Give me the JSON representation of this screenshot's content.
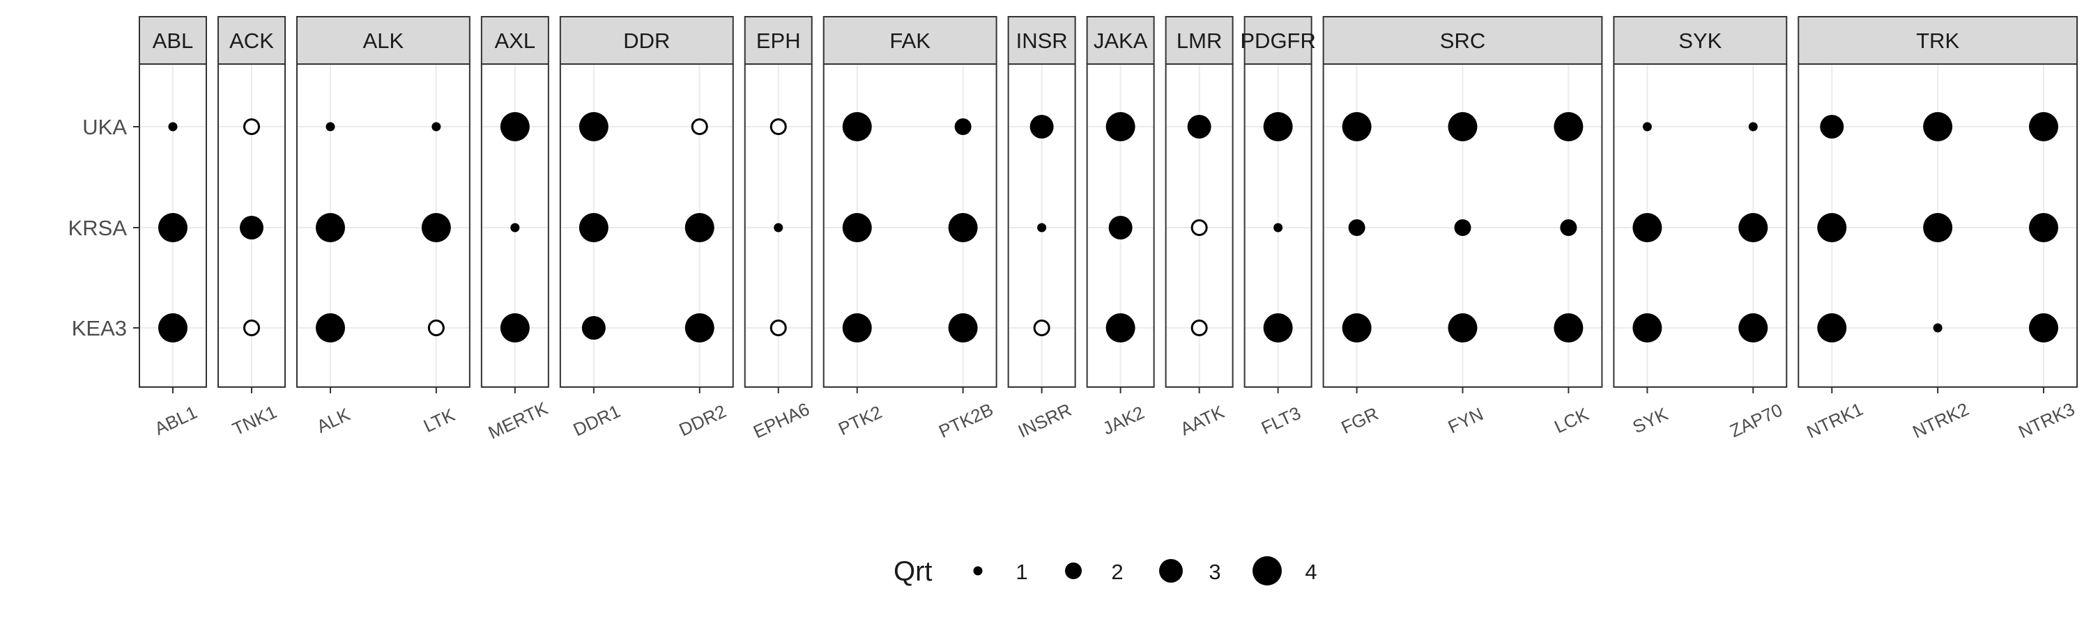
{
  "chart_data": {
    "type": "scatter",
    "title": "",
    "xlabel": "",
    "ylabel": "",
    "y_categories": [
      "UKA",
      "KRSA",
      "KEA3"
    ],
    "size_legend": {
      "title": "Qrt",
      "levels": [
        1,
        2,
        3,
        4
      ],
      "labels": [
        "1",
        "2",
        "3",
        "4"
      ]
    },
    "point_style": {
      "filled_color": "#000000",
      "open_fill": "#ffffff",
      "open_stroke": "#000000"
    },
    "panel_strip_color": "#d9d9d9",
    "grid": true,
    "legend_position": "bottom",
    "panels": [
      {
        "family": "ABL",
        "genes": [
          {
            "name": "ABL1",
            "points": [
              {
                "y": "UKA",
                "qrt": 1,
                "filled": true
              },
              {
                "y": "KRSA",
                "qrt": 4,
                "filled": true
              },
              {
                "y": "KEA3",
                "qrt": 4,
                "filled": true
              }
            ]
          }
        ]
      },
      {
        "family": "ACK",
        "genes": [
          {
            "name": "TNK1",
            "points": [
              {
                "y": "UKA",
                "qrt": 2,
                "filled": false
              },
              {
                "y": "KRSA",
                "qrt": 3,
                "filled": true
              },
              {
                "y": "KEA3",
                "qrt": 2,
                "filled": false
              }
            ]
          }
        ]
      },
      {
        "family": "ALK",
        "genes": [
          {
            "name": "ALK",
            "points": [
              {
                "y": "UKA",
                "qrt": 1,
                "filled": true
              },
              {
                "y": "KRSA",
                "qrt": 4,
                "filled": true
              },
              {
                "y": "KEA3",
                "qrt": 4,
                "filled": true
              }
            ]
          },
          {
            "name": "LTK",
            "points": [
              {
                "y": "UKA",
                "qrt": 1,
                "filled": true
              },
              {
                "y": "KRSA",
                "qrt": 4,
                "filled": true
              },
              {
                "y": "KEA3",
                "qrt": 2,
                "filled": false
              }
            ]
          }
        ]
      },
      {
        "family": "AXL",
        "genes": [
          {
            "name": "MERTK",
            "points": [
              {
                "y": "UKA",
                "qrt": 4,
                "filled": true
              },
              {
                "y": "KRSA",
                "qrt": 1,
                "filled": true
              },
              {
                "y": "KEA3",
                "qrt": 4,
                "filled": true
              }
            ]
          }
        ]
      },
      {
        "family": "DDR",
        "genes": [
          {
            "name": "DDR1",
            "points": [
              {
                "y": "UKA",
                "qrt": 4,
                "filled": true
              },
              {
                "y": "KRSA",
                "qrt": 4,
                "filled": true
              },
              {
                "y": "KEA3",
                "qrt": 3,
                "filled": true
              }
            ]
          },
          {
            "name": "DDR2",
            "points": [
              {
                "y": "UKA",
                "qrt": 2,
                "filled": false
              },
              {
                "y": "KRSA",
                "qrt": 4,
                "filled": true
              },
              {
                "y": "KEA3",
                "qrt": 4,
                "filled": true
              }
            ]
          }
        ]
      },
      {
        "family": "EPH",
        "genes": [
          {
            "name": "EPHA6",
            "points": [
              {
                "y": "UKA",
                "qrt": 2,
                "filled": false
              },
              {
                "y": "KRSA",
                "qrt": 1,
                "filled": true
              },
              {
                "y": "KEA3",
                "qrt": 2,
                "filled": false
              }
            ]
          }
        ]
      },
      {
        "family": "FAK",
        "genes": [
          {
            "name": "PTK2",
            "points": [
              {
                "y": "UKA",
                "qrt": 4,
                "filled": true
              },
              {
                "y": "KRSA",
                "qrt": 4,
                "filled": true
              },
              {
                "y": "KEA3",
                "qrt": 4,
                "filled": true
              }
            ]
          },
          {
            "name": "PTK2B",
            "points": [
              {
                "y": "UKA",
                "qrt": 2,
                "filled": true
              },
              {
                "y": "KRSA",
                "qrt": 4,
                "filled": true
              },
              {
                "y": "KEA3",
                "qrt": 4,
                "filled": true
              }
            ]
          }
        ]
      },
      {
        "family": "INSR",
        "genes": [
          {
            "name": "INSRR",
            "points": [
              {
                "y": "UKA",
                "qrt": 3,
                "filled": true
              },
              {
                "y": "KRSA",
                "qrt": 1,
                "filled": true
              },
              {
                "y": "KEA3",
                "qrt": 2,
                "filled": false
              }
            ]
          }
        ]
      },
      {
        "family": "JAKA",
        "genes": [
          {
            "name": "JAK2",
            "points": [
              {
                "y": "UKA",
                "qrt": 4,
                "filled": true
              },
              {
                "y": "KRSA",
                "qrt": 3,
                "filled": true
              },
              {
                "y": "KEA3",
                "qrt": 4,
                "filled": true
              }
            ]
          }
        ]
      },
      {
        "family": "LMR",
        "genes": [
          {
            "name": "AATK",
            "points": [
              {
                "y": "UKA",
                "qrt": 3,
                "filled": true
              },
              {
                "y": "KRSA",
                "qrt": 2,
                "filled": false
              },
              {
                "y": "KEA3",
                "qrt": 2,
                "filled": false
              }
            ]
          }
        ]
      },
      {
        "family": "PDGFR",
        "genes": [
          {
            "name": "FLT3",
            "points": [
              {
                "y": "UKA",
                "qrt": 4,
                "filled": true
              },
              {
                "y": "KRSA",
                "qrt": 1,
                "filled": true
              },
              {
                "y": "KEA3",
                "qrt": 4,
                "filled": true
              }
            ]
          }
        ]
      },
      {
        "family": "SRC",
        "genes": [
          {
            "name": "FGR",
            "points": [
              {
                "y": "UKA",
                "qrt": 4,
                "filled": true
              },
              {
                "y": "KRSA",
                "qrt": 2,
                "filled": true
              },
              {
                "y": "KEA3",
                "qrt": 4,
                "filled": true
              }
            ]
          },
          {
            "name": "FYN",
            "points": [
              {
                "y": "UKA",
                "qrt": 4,
                "filled": true
              },
              {
                "y": "KRSA",
                "qrt": 2,
                "filled": true
              },
              {
                "y": "KEA3",
                "qrt": 4,
                "filled": true
              }
            ]
          },
          {
            "name": "LCK",
            "points": [
              {
                "y": "UKA",
                "qrt": 4,
                "filled": true
              },
              {
                "y": "KRSA",
                "qrt": 2,
                "filled": true
              },
              {
                "y": "KEA3",
                "qrt": 4,
                "filled": true
              }
            ]
          }
        ]
      },
      {
        "family": "SYK",
        "genes": [
          {
            "name": "SYK",
            "points": [
              {
                "y": "UKA",
                "qrt": 1,
                "filled": true
              },
              {
                "y": "KRSA",
                "qrt": 4,
                "filled": true
              },
              {
                "y": "KEA3",
                "qrt": 4,
                "filled": true
              }
            ]
          },
          {
            "name": "ZAP70",
            "points": [
              {
                "y": "UKA",
                "qrt": 1,
                "filled": true
              },
              {
                "y": "KRSA",
                "qrt": 4,
                "filled": true
              },
              {
                "y": "KEA3",
                "qrt": 4,
                "filled": true
              }
            ]
          }
        ]
      },
      {
        "family": "TRK",
        "genes": [
          {
            "name": "NTRK1",
            "points": [
              {
                "y": "UKA",
                "qrt": 3,
                "filled": true
              },
              {
                "y": "KRSA",
                "qrt": 4,
                "filled": true
              },
              {
                "y": "KEA3",
                "qrt": 4,
                "filled": true
              }
            ]
          },
          {
            "name": "NTRK2",
            "points": [
              {
                "y": "UKA",
                "qrt": 4,
                "filled": true
              },
              {
                "y": "KRSA",
                "qrt": 4,
                "filled": true
              },
              {
                "y": "KEA3",
                "qrt": 1,
                "filled": true
              }
            ]
          },
          {
            "name": "NTRK3",
            "points": [
              {
                "y": "UKA",
                "qrt": 4,
                "filled": true
              },
              {
                "y": "KRSA",
                "qrt": 4,
                "filled": true
              },
              {
                "y": "KEA3",
                "qrt": 4,
                "filled": true
              }
            ]
          }
        ]
      }
    ]
  }
}
